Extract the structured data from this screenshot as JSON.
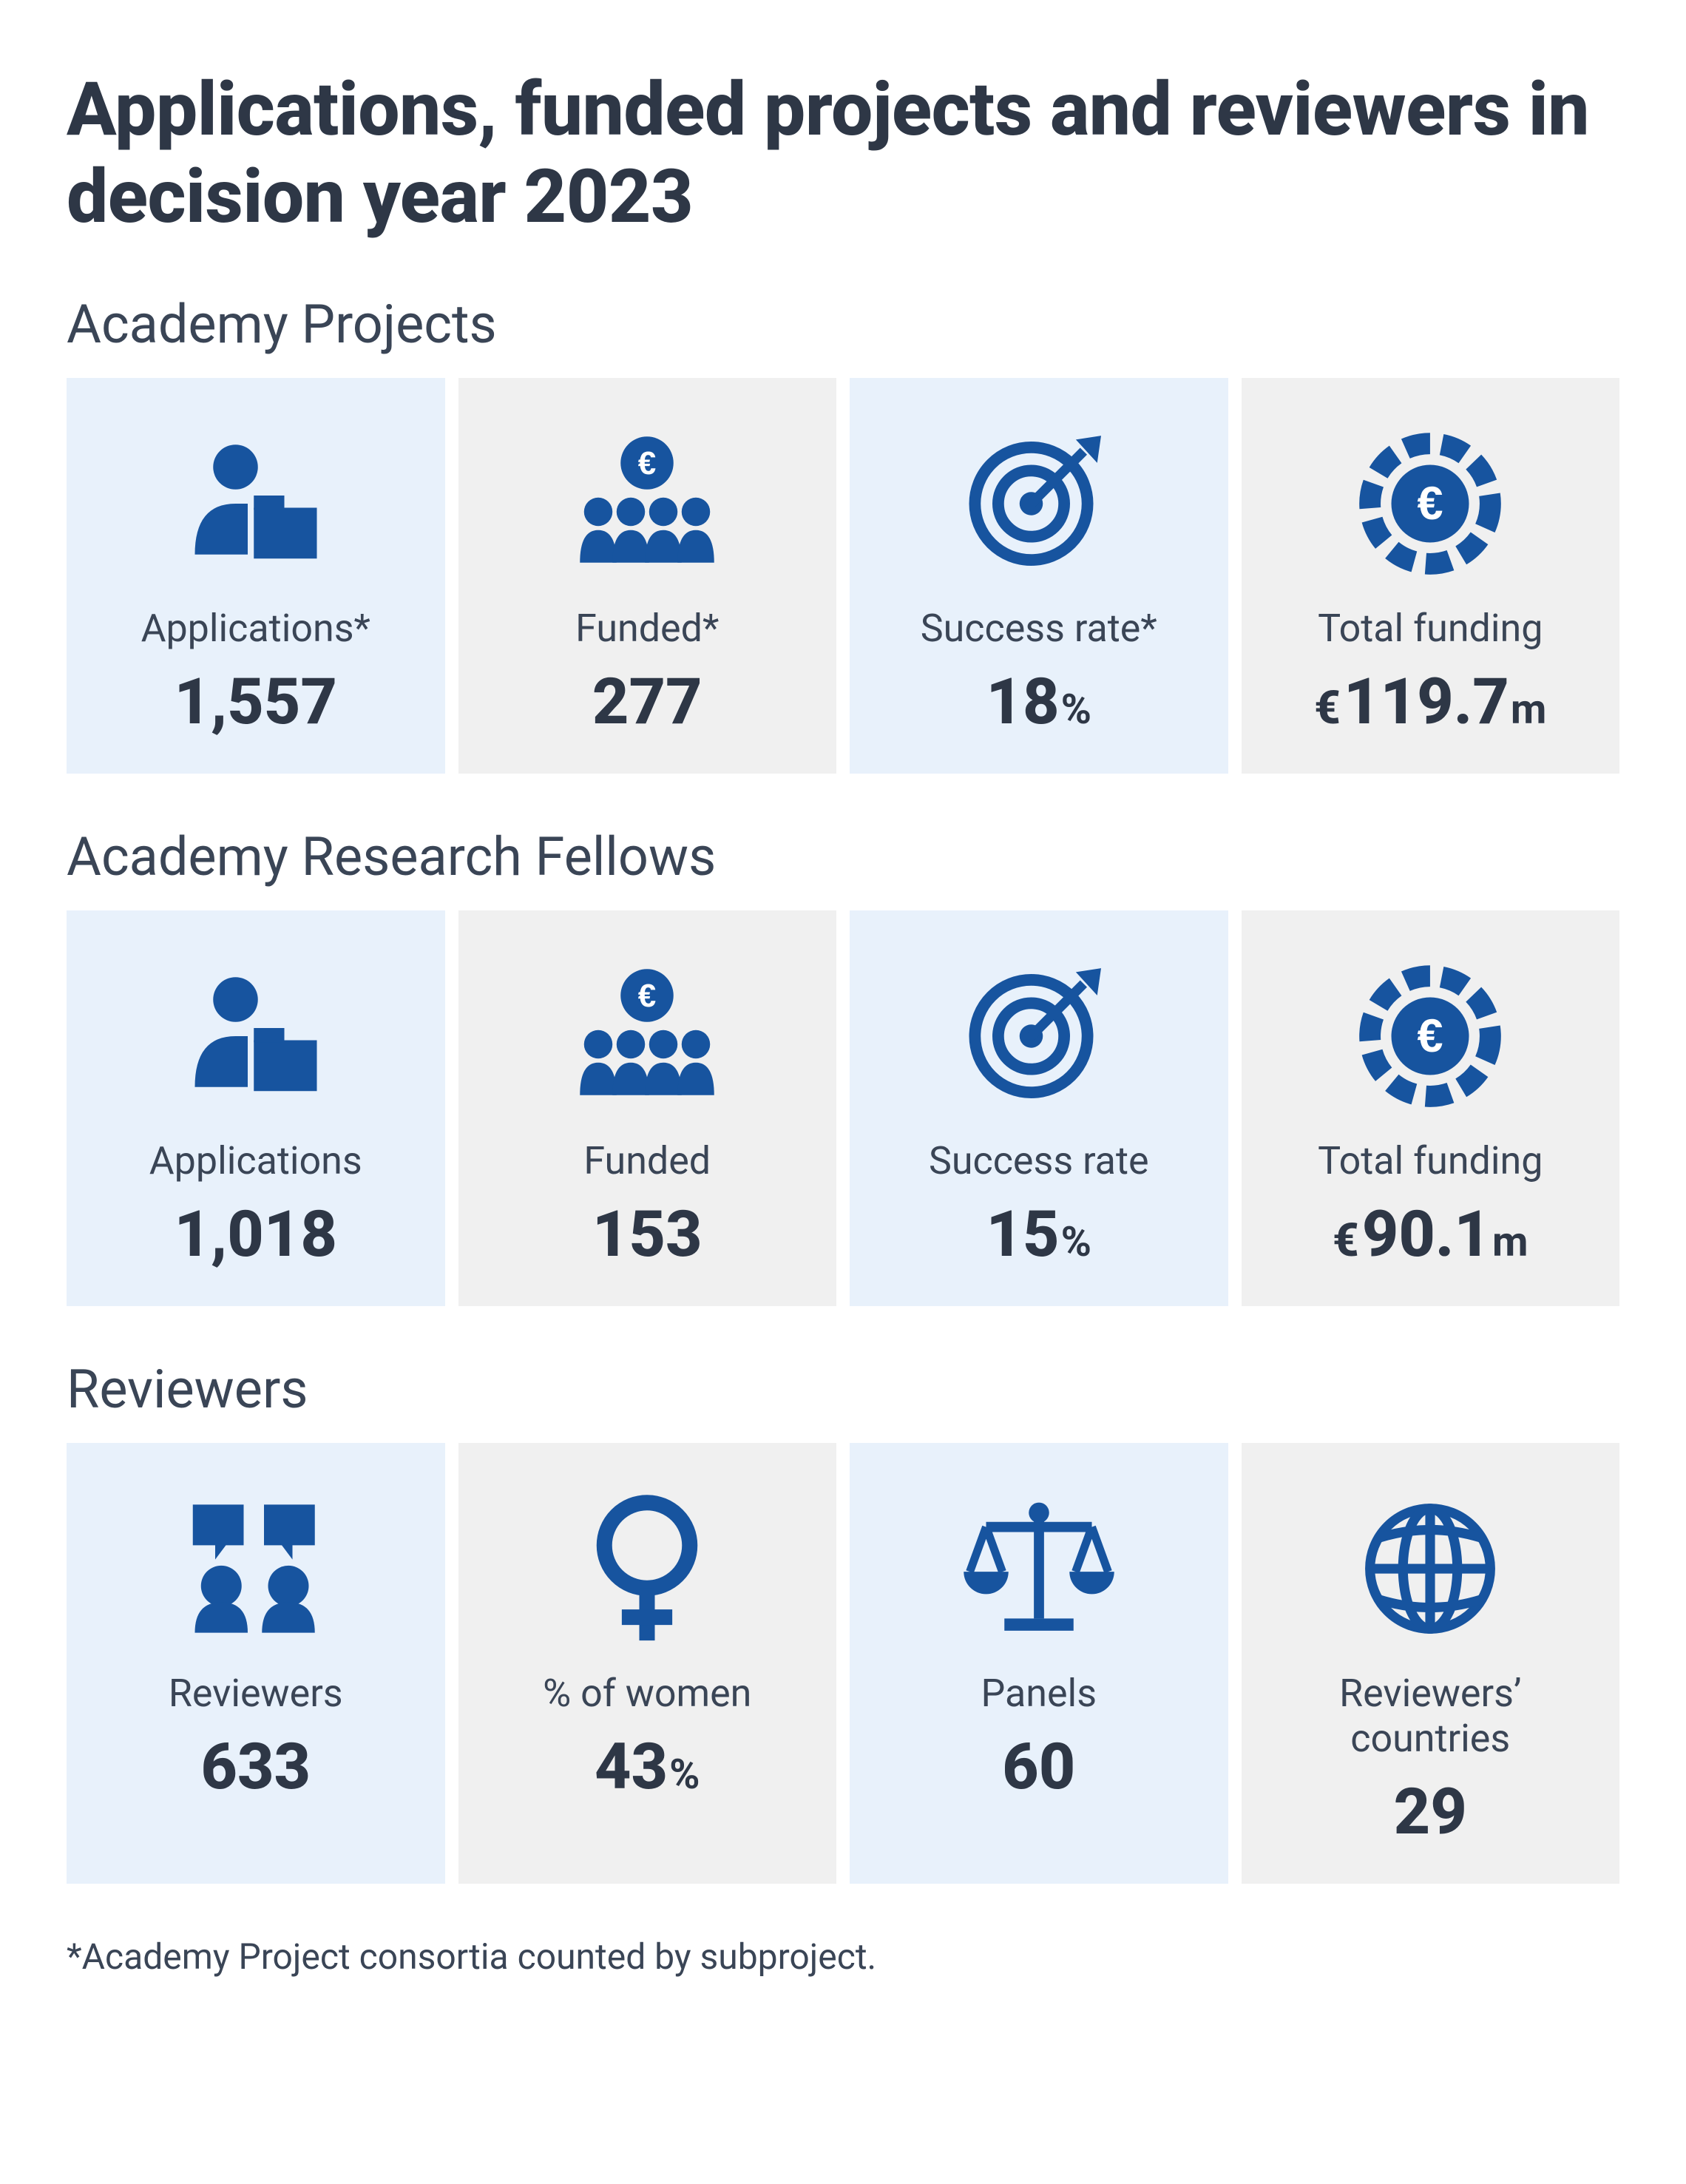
{
  "title": "Applications, funded projects and reviewers in decision year 2023",
  "footnote": "*Academy Project consortia counted by subproject.",
  "colors": {
    "icon": "#17549f",
    "card_blue": "#e8f1fb",
    "card_grey": "#f0f0f0",
    "text_heading": "#2e3746",
    "text_body": "#3a4556",
    "background": "#ffffff"
  },
  "sections": [
    {
      "title": "Academy Projects",
      "cards": [
        {
          "icon": "person-file",
          "label": "Applications*",
          "value": "1,557",
          "prefix": "",
          "suffix": ""
        },
        {
          "icon": "team-euro",
          "label": "Funded*",
          "value": "277",
          "prefix": "",
          "suffix": ""
        },
        {
          "icon": "target",
          "label": "Success rate*",
          "value": "18",
          "prefix": "",
          "suffix": "%"
        },
        {
          "icon": "euro-badge",
          "label": "Total funding",
          "value": "119.7",
          "prefix": "€",
          "suffix": "m"
        }
      ]
    },
    {
      "title": "Academy Research Fellows",
      "cards": [
        {
          "icon": "person-file",
          "label": "Applications",
          "value": "1,018",
          "prefix": "",
          "suffix": ""
        },
        {
          "icon": "team-euro",
          "label": "Funded",
          "value": "153",
          "prefix": "",
          "suffix": ""
        },
        {
          "icon": "target",
          "label": "Success rate",
          "value": "15",
          "prefix": "",
          "suffix": "%"
        },
        {
          "icon": "euro-badge",
          "label": "Total funding",
          "value": "90.1",
          "prefix": "€",
          "suffix": "m"
        }
      ]
    },
    {
      "title": "Reviewers",
      "cards": [
        {
          "icon": "reviewers",
          "label": "Reviewers",
          "value": "633",
          "prefix": "",
          "suffix": ""
        },
        {
          "icon": "female",
          "label": "% of women",
          "value": "43",
          "prefix": "",
          "suffix": "%"
        },
        {
          "icon": "scales",
          "label": "Panels",
          "value": "60",
          "prefix": "",
          "suffix": ""
        },
        {
          "icon": "globe",
          "label": "Reviewers’ countries",
          "value": "29",
          "prefix": "",
          "suffix": ""
        }
      ]
    }
  ]
}
